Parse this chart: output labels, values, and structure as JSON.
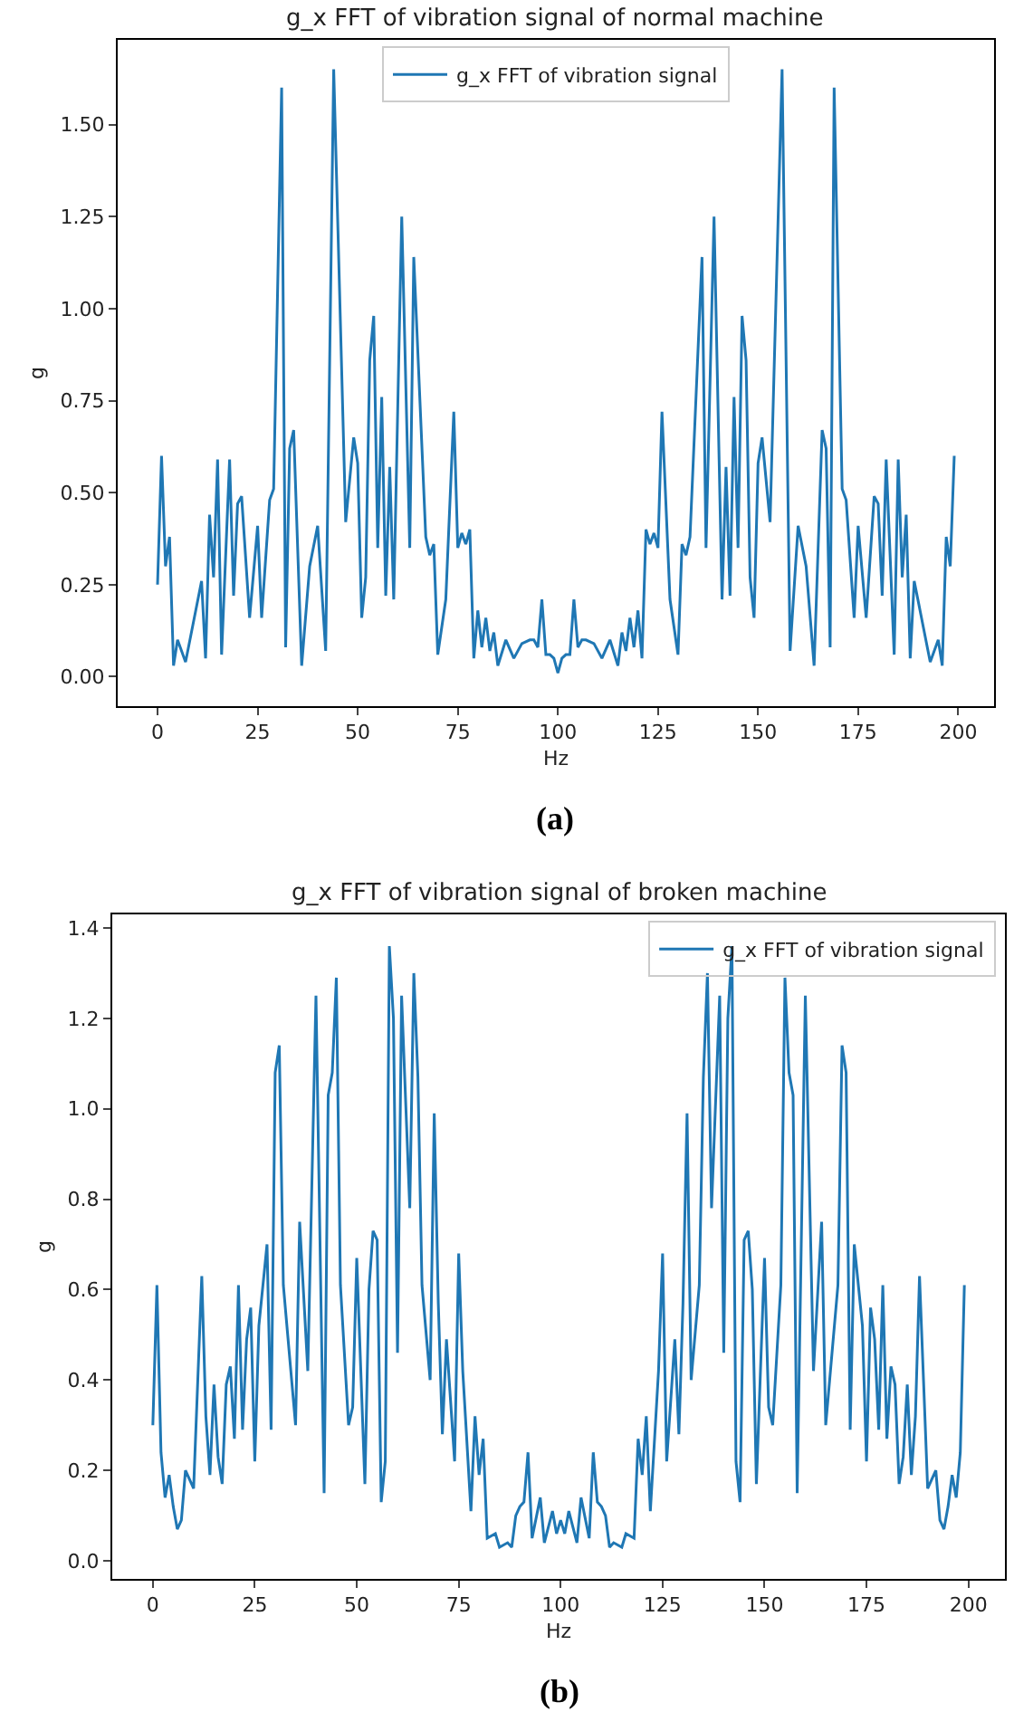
{
  "chart_data": [
    {
      "type": "line",
      "title": "g_x FFT of vibration signal of normal machine",
      "xlabel": "Hz",
      "ylabel": "g",
      "annotations": [
        "(a)"
      ],
      "legend": "top",
      "xlim": [
        -9.95,
        208.95
      ],
      "xticks": [
        0,
        25,
        50,
        75,
        100,
        125,
        150,
        175,
        200
      ],
      "ylim": [
        -0.08,
        1.73
      ],
      "yticks": [
        {
          "value": 0,
          "label": "0.00"
        },
        {
          "value": 0.25,
          "label": "0.25"
        },
        {
          "value": 0.5,
          "label": "0.50"
        },
        {
          "value": 0.75,
          "label": "0.75"
        },
        {
          "value": 1,
          "label": "1.00"
        },
        {
          "value": 1.25,
          "label": "1.25"
        },
        {
          "value": 1.5,
          "label": "1.50"
        }
      ],
      "series": [
        {
          "name": "g_x FFT of vibration signal",
          "color": "#1f77b4",
          "x": [
            0,
            1,
            2,
            3,
            4,
            5,
            7,
            11,
            12,
            13,
            14,
            15,
            16,
            18,
            19,
            20,
            21,
            23,
            25,
            26,
            28,
            29,
            31,
            32,
            33,
            34,
            36,
            38,
            40,
            42,
            44,
            47,
            49,
            50,
            51,
            52,
            53,
            54,
            55,
            56,
            57,
            58,
            59,
            61,
            63,
            64,
            67,
            68,
            69,
            70,
            72,
            74,
            75,
            76,
            77,
            78,
            79,
            80,
            81,
            82,
            83,
            84,
            85,
            87,
            89,
            91,
            93,
            94,
            95,
            96,
            97,
            98,
            99,
            100,
            101,
            102,
            103,
            104,
            105,
            106,
            107,
            109,
            111,
            113,
            115,
            116,
            117,
            118,
            119,
            120,
            121,
            122,
            123,
            124,
            125,
            126,
            128,
            130,
            131,
            132,
            133,
            136,
            137,
            139,
            141,
            142,
            143,
            144,
            145,
            146,
            147,
            148,
            149,
            150,
            151,
            153,
            156,
            158,
            160,
            162,
            164,
            166,
            167,
            168,
            169,
            171,
            172,
            174,
            175,
            177,
            179,
            180,
            181,
            182,
            184,
            185,
            186,
            187,
            188,
            189,
            193,
            195,
            196,
            197,
            198,
            199
          ],
          "values": [
            0.25,
            0.6,
            0.3,
            0.38,
            0.03,
            0.1,
            0.04,
            0.26,
            0.05,
            0.44,
            0.27,
            0.59,
            0.06,
            0.59,
            0.22,
            0.47,
            0.49,
            0.16,
            0.41,
            0.16,
            0.48,
            0.51,
            1.6,
            0.08,
            0.62,
            0.67,
            0.03,
            0.3,
            0.41,
            0.07,
            1.65,
            0.42,
            0.65,
            0.58,
            0.16,
            0.27,
            0.86,
            0.98,
            0.35,
            0.76,
            0.22,
            0.57,
            0.21,
            1.25,
            0.35,
            1.14,
            0.38,
            0.33,
            0.36,
            0.06,
            0.21,
            0.72,
            0.35,
            0.39,
            0.36,
            0.4,
            0.05,
            0.18,
            0.08,
            0.16,
            0.07,
            0.12,
            0.03,
            0.1,
            0.05,
            0.09,
            0.1,
            0.1,
            0.08,
            0.21,
            0.06,
            0.06,
            0.05,
            0.01,
            0.05,
            0.06,
            0.06,
            0.21,
            0.08,
            0.1,
            0.1,
            0.09,
            0.05,
            0.1,
            0.03,
            0.12,
            0.07,
            0.16,
            0.08,
            0.18,
            0.05,
            0.4,
            0.36,
            0.39,
            0.35,
            0.72,
            0.21,
            0.06,
            0.36,
            0.33,
            0.38,
            1.14,
            0.35,
            1.25,
            0.21,
            0.57,
            0.22,
            0.76,
            0.35,
            0.98,
            0.86,
            0.27,
            0.16,
            0.58,
            0.65,
            0.42,
            1.65,
            0.07,
            0.41,
            0.3,
            0.03,
            0.67,
            0.62,
            0.08,
            1.6,
            0.51,
            0.48,
            0.16,
            0.41,
            0.16,
            0.49,
            0.47,
            0.22,
            0.59,
            0.06,
            0.59,
            0.27,
            0.44,
            0.05,
            0.26,
            0.04,
            0.1,
            0.03,
            0.38,
            0.3,
            0.6
          ]
        }
      ]
    },
    {
      "type": "line",
      "title": "g_x FFT of vibration signal of broken machine",
      "xlabel": "Hz",
      "ylabel": "g",
      "annotations": [
        "(b)"
      ],
      "legend": "top right",
      "xlim": [
        -9.95,
        208.95
      ],
      "xticks": [
        0,
        25,
        50,
        75,
        100,
        125,
        150,
        175,
        200
      ],
      "ylim": [
        -0.04,
        1.43
      ],
      "yticks": [
        {
          "value": 0,
          "label": "0.0"
        },
        {
          "value": 0.2,
          "label": "0.2"
        },
        {
          "value": 0.4,
          "label": "0.4"
        },
        {
          "value": 0.6,
          "label": "0.6"
        },
        {
          "value": 0.8,
          "label": "0.8"
        },
        {
          "value": 1,
          "label": "1.0"
        },
        {
          "value": 1.2,
          "label": "1.2"
        },
        {
          "value": 1.4,
          "label": "1.4"
        }
      ],
      "series": [
        {
          "name": "g_x FFT of vibration signal",
          "color": "#1f77b4",
          "x": [
            0,
            1,
            2,
            3,
            4,
            5,
            6,
            7,
            8,
            10,
            12,
            13,
            14,
            15,
            16,
            17,
            18,
            19,
            20,
            21,
            22,
            23,
            24,
            25,
            26,
            28,
            29,
            30,
            31,
            32,
            35,
            36,
            38,
            40,
            42,
            43,
            44,
            45,
            46,
            48,
            49,
            50,
            52,
            53,
            54,
            55,
            56,
            57,
            58,
            59,
            60,
            61,
            63,
            64,
            65,
            66,
            68,
            69,
            70,
            71,
            72,
            74,
            75,
            76,
            78,
            79,
            80,
            81,
            82,
            84,
            85,
            87,
            88,
            89,
            90,
            91,
            92,
            93,
            95,
            96,
            98,
            99,
            100,
            101,
            102,
            104,
            105,
            107,
            108,
            109,
            110,
            111,
            112,
            113,
            115,
            116,
            118,
            119,
            120,
            121,
            122,
            124,
            125,
            126,
            128,
            129,
            130,
            131,
            132,
            134,
            135,
            136,
            137,
            139,
            140,
            141,
            142,
            143,
            144,
            145,
            146,
            147,
            148,
            150,
            151,
            152,
            154,
            155,
            156,
            157,
            158,
            160,
            162,
            164,
            165,
            168,
            169,
            170,
            171,
            172,
            174,
            175,
            176,
            177,
            178,
            179,
            180,
            181,
            182,
            183,
            184,
            185,
            186,
            187,
            188,
            190,
            192,
            193,
            194,
            195,
            196,
            197,
            198,
            199
          ],
          "values": [
            0.3,
            0.61,
            0.24,
            0.14,
            0.19,
            0.12,
            0.07,
            0.09,
            0.2,
            0.16,
            0.63,
            0.32,
            0.19,
            0.39,
            0.23,
            0.17,
            0.39,
            0.43,
            0.27,
            0.61,
            0.29,
            0.49,
            0.56,
            0.22,
            0.52,
            0.7,
            0.29,
            1.08,
            1.14,
            0.61,
            0.3,
            0.75,
            0.42,
            1.25,
            0.15,
            1.03,
            1.08,
            1.29,
            0.61,
            0.3,
            0.34,
            0.67,
            0.17,
            0.6,
            0.73,
            0.71,
            0.13,
            0.22,
            1.36,
            1.2,
            0.46,
            1.25,
            0.78,
            1.3,
            1.07,
            0.61,
            0.4,
            0.99,
            0.57,
            0.28,
            0.49,
            0.22,
            0.68,
            0.42,
            0.11,
            0.32,
            0.19,
            0.27,
            0.05,
            0.06,
            0.03,
            0.04,
            0.03,
            0.1,
            0.12,
            0.13,
            0.24,
            0.05,
            0.14,
            0.04,
            0.11,
            0.06,
            0.09,
            0.06,
            0.11,
            0.04,
            0.14,
            0.05,
            0.24,
            0.13,
            0.12,
            0.1,
            0.03,
            0.04,
            0.03,
            0.06,
            0.05,
            0.27,
            0.19,
            0.32,
            0.11,
            0.42,
            0.68,
            0.22,
            0.49,
            0.28,
            0.57,
            0.99,
            0.4,
            0.61,
            1.07,
            1.3,
            0.78,
            1.25,
            0.46,
            1.2,
            1.36,
            0.22,
            0.13,
            0.71,
            0.73,
            0.6,
            0.17,
            0.67,
            0.34,
            0.3,
            0.61,
            1.29,
            1.08,
            1.03,
            0.15,
            1.25,
            0.42,
            0.75,
            0.3,
            0.61,
            1.14,
            1.08,
            0.29,
            0.7,
            0.52,
            0.22,
            0.56,
            0.49,
            0.29,
            0.61,
            0.27,
            0.43,
            0.39,
            0.17,
            0.23,
            0.39,
            0.19,
            0.32,
            0.63,
            0.16,
            0.2,
            0.09,
            0.07,
            0.12,
            0.19,
            0.14,
            0.24,
            0.61
          ]
        }
      ]
    }
  ]
}
